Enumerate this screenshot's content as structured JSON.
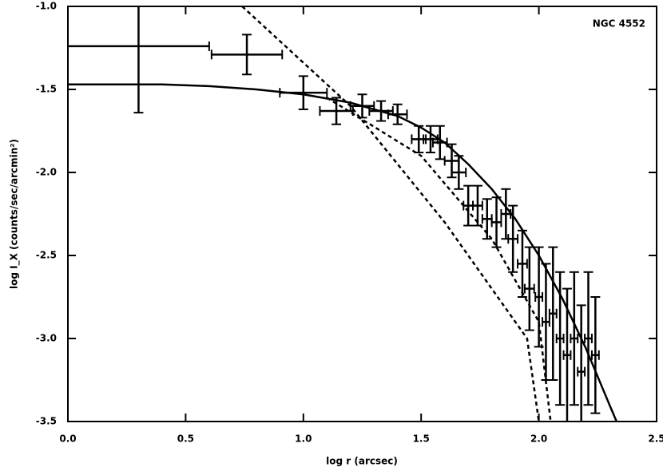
{
  "chart_data": {
    "type": "scatter",
    "title": "NGC 4552",
    "xlabel": "log r (arcsec)",
    "ylabel": "log I_X (counts/sec/arcmin²)",
    "xlim": [
      0,
      2.5
    ],
    "ylim": [
      -3.5,
      -1.0
    ],
    "xticks": [
      {
        "value": 0,
        "label": "0.0"
      },
      0.5,
      {
        "value": 1,
        "label": "1.0"
      },
      1.5,
      {
        "value": 2,
        "label": "2.0"
      },
      2.5
    ],
    "yticks": [
      {
        "value": -1,
        "label": "-1.0"
      },
      -1.5,
      {
        "value": -2,
        "label": "-2.0"
      },
      -2.5,
      {
        "value": -3,
        "label": "-3.0"
      },
      -3.5
    ],
    "series": [
      {
        "kind": "errorbar",
        "color": "#000000",
        "x": [
          0.3,
          0.76,
          1.0,
          1.14,
          1.25,
          1.33,
          1.4,
          1.49,
          1.54,
          1.58,
          1.63,
          1.66,
          1.7,
          1.74,
          1.78,
          1.82,
          1.86,
          1.89,
          1.93,
          1.96,
          2.0,
          2.03,
          2.06,
          2.09,
          2.12,
          2.15,
          2.18,
          2.21,
          2.24
        ],
        "values": [
          -1.24,
          -1.29,
          -1.52,
          -1.63,
          -1.6,
          -1.63,
          -1.65,
          -1.8,
          -1.8,
          -1.82,
          -1.93,
          -2.0,
          -2.2,
          -2.2,
          -2.28,
          -2.3,
          -2.25,
          -2.4,
          -2.55,
          -2.7,
          -2.75,
          -2.9,
          -2.85,
          -3.0,
          -3.1,
          -3.0,
          -3.2,
          -3.0,
          -3.1
        ],
        "xerr": [
          0.3,
          0.15,
          0.1,
          0.07,
          0.05,
          0.05,
          0.04,
          0.03,
          0.03,
          0.03,
          0.03,
          0.03,
          0.02,
          0.02,
          0.02,
          0.02,
          0.02,
          0.02,
          0.02,
          0.02,
          0.015,
          0.015,
          0.015,
          0.015,
          0.015,
          0.015,
          0.015,
          0.015,
          0.015
        ],
        "yerr": [
          0.4,
          0.12,
          0.1,
          0.08,
          0.07,
          0.06,
          0.06,
          0.08,
          0.08,
          0.1,
          0.1,
          0.1,
          0.12,
          0.12,
          0.12,
          0.15,
          0.15,
          0.2,
          0.2,
          0.25,
          0.3,
          0.35,
          0.4,
          0.4,
          0.4,
          0.4,
          0.4,
          0.4,
          0.35
        ]
      },
      {
        "kind": "line",
        "dashed": false,
        "color": "#000000",
        "x": [
          0,
          0.2,
          0.4,
          0.6,
          0.8,
          1.0,
          1.2,
          1.4,
          1.5,
          1.6,
          1.7,
          1.8,
          1.9,
          2.0,
          2.1,
          2.2,
          2.3,
          2.33
        ],
        "values": [
          -1.47,
          -1.47,
          -1.47,
          -1.48,
          -1.5,
          -1.53,
          -1.58,
          -1.66,
          -1.73,
          -1.82,
          -1.95,
          -2.1,
          -2.28,
          -2.5,
          -2.76,
          -3.06,
          -3.4,
          -3.5
        ]
      },
      {
        "kind": "line",
        "dashed": true,
        "color": "#000000",
        "x": [
          0.74,
          1.2,
          1.6,
          1.95,
          2.0
        ],
        "values": [
          -1.0,
          -1.6,
          -2.3,
          -3.0,
          -3.5
        ]
      },
      {
        "kind": "line",
        "dashed": true,
        "color": "#000000",
        "x": [
          1.1,
          1.5,
          1.8,
          2.0,
          2.05
        ],
        "values": [
          -1.55,
          -1.9,
          -2.4,
          -2.9,
          -3.5
        ]
      }
    ]
  }
}
